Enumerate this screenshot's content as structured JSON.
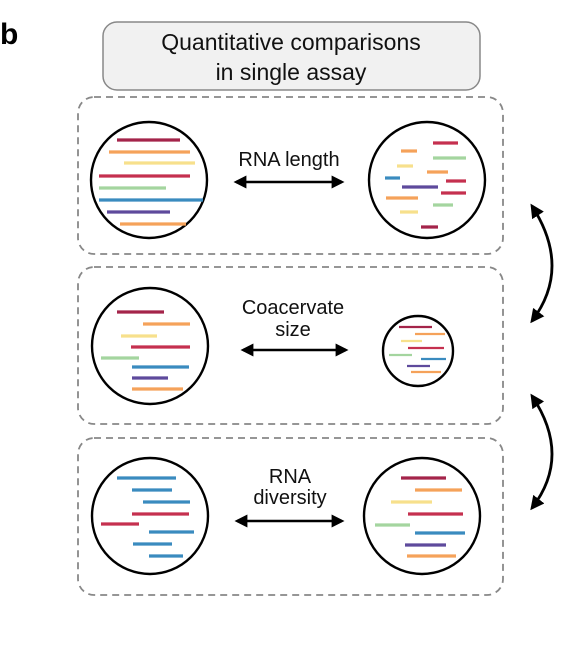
{
  "panel_letter": "b",
  "title": {
    "line1": "Quantitative comparisons",
    "line2": "in single assay"
  },
  "panels": [
    {
      "label_lines": [
        "RNA length"
      ]
    },
    {
      "label_lines": [
        "Coacervate",
        "size"
      ]
    },
    {
      "label_lines": [
        "RNA",
        "diversity"
      ]
    }
  ],
  "colors": {
    "red": "#c5304f",
    "orange": "#f5a25a",
    "yellow": "#f7e08c",
    "green": "#a4d59f",
    "blue": "#3a8bbf",
    "purple": "#5e4a9c",
    "crimson": "#a4244a",
    "border": "#888888",
    "title_fill": "#f1f1f1"
  }
}
